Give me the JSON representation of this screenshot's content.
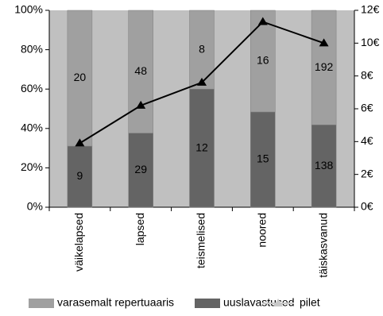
{
  "chart_data": {
    "type": "bar",
    "stacking": "percent",
    "categories": [
      "väikelapsed",
      "lapsed",
      "teismelised",
      "noored",
      "täiskasvanud"
    ],
    "series": [
      {
        "name": "varasemalt repertuaaris",
        "color": "#a0a0a0",
        "values": [
          20,
          48,
          8,
          16,
          192
        ]
      },
      {
        "name": "uuslavastused",
        "color": "#646464",
        "values": [
          9,
          29,
          12,
          15,
          138
        ]
      },
      {
        "name": "pilet",
        "color": "#000000",
        "type": "line",
        "axis": "y2",
        "values": [
          3.9,
          6.2,
          7.6,
          11.3,
          10.0
        ]
      }
    ],
    "ylim": [
      0,
      100
    ],
    "yticks": [
      {
        "value": 0,
        "label": "0%"
      },
      {
        "value": 20,
        "label": "20%"
      },
      {
        "value": 40,
        "label": "40%"
      },
      {
        "value": 60,
        "label": "60%"
      },
      {
        "value": 80,
        "label": "80%"
      },
      {
        "value": 100,
        "label": "100%"
      }
    ],
    "y2lim": [
      0,
      12
    ],
    "y2ticks": [
      {
        "value": 0,
        "label": "0€"
      },
      {
        "value": 2,
        "label": "2€"
      },
      {
        "value": 4,
        "label": "4€"
      },
      {
        "value": 6,
        "label": "6€"
      },
      {
        "value": 8,
        "label": "8€"
      },
      {
        "value": 10,
        "label": "10€"
      },
      {
        "value": 12,
        "label": "12€"
      }
    ],
    "legend": "bottom"
  }
}
